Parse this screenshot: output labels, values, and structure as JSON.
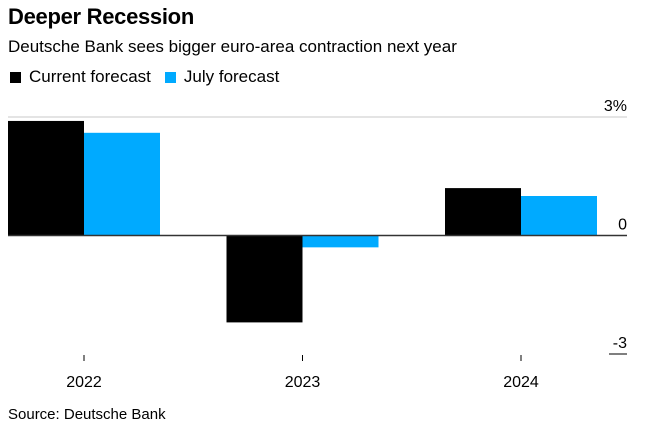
{
  "title": "Deeper Recession",
  "subtitle": "Deutsche Bank sees bigger euro-area contraction next year",
  "source": "Source: Deutsche Bank",
  "legend": [
    {
      "label": "Current forecast",
      "color": "#000000"
    },
    {
      "label": "July forecast",
      "color": "#00aaff"
    }
  ],
  "chart_data": {
    "type": "bar",
    "title": "Deeper Recession",
    "subtitle": "Deutsche Bank sees bigger euro-area contraction next year",
    "categories": [
      "2022",
      "2023",
      "2024"
    ],
    "series": [
      {
        "name": "Current forecast",
        "color": "#000000",
        "values": [
          2.9,
          -2.2,
          1.2
        ]
      },
      {
        "name": "July forecast",
        "color": "#00aaff",
        "values": [
          2.6,
          -0.3,
          1.0
        ]
      }
    ],
    "xlabel": "",
    "ylabel": "",
    "ylim": [
      -3,
      3
    ],
    "yticks": [
      3,
      0,
      -3
    ],
    "ytick_labels": [
      "3%",
      "0",
      "-3"
    ],
    "yaxis_position": "right",
    "grid": true,
    "legend_position": "top-left",
    "source": "Source: Deutsche Bank"
  }
}
